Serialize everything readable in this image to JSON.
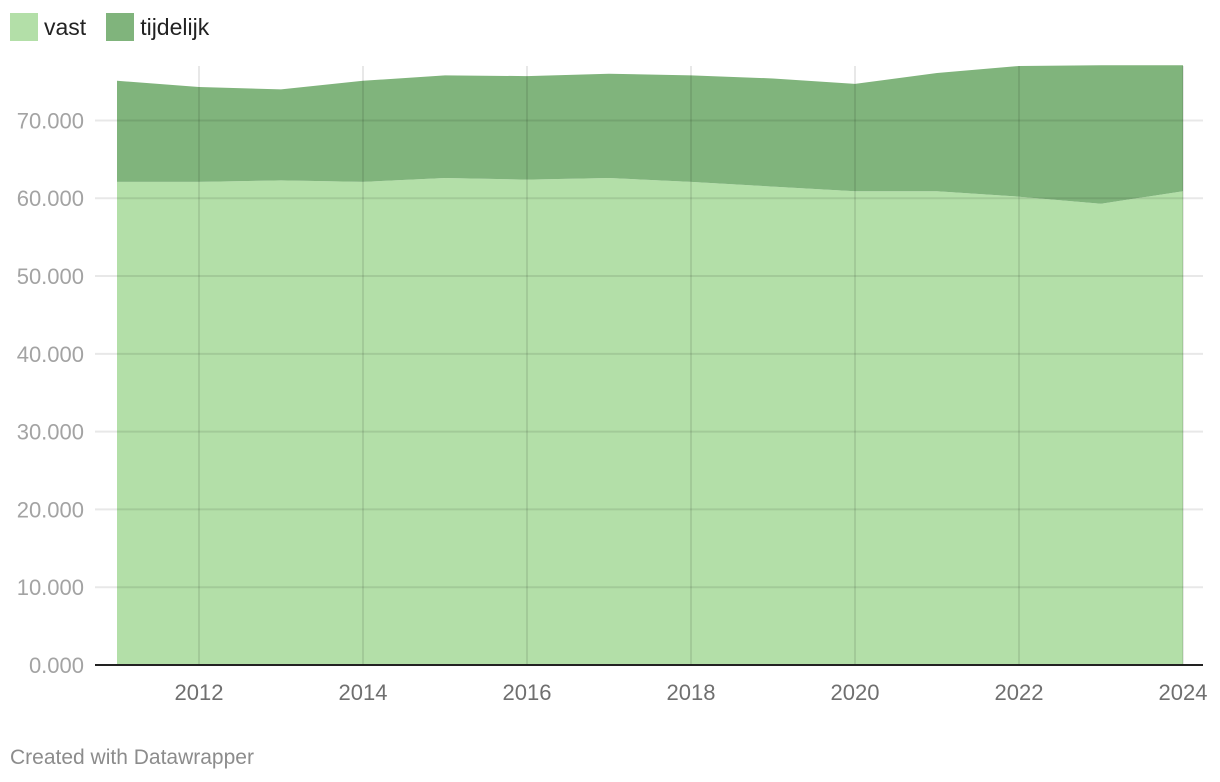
{
  "legend": {
    "items": [
      {
        "label": "vast",
        "color": "#b3dfa8"
      },
      {
        "label": "tijdelijk",
        "color": "#80b47c"
      }
    ]
  },
  "footer": {
    "credit": "Created with Datawrapper"
  },
  "chart_data": {
    "type": "area",
    "stacked": true,
    "x": [
      2011,
      2012,
      2013,
      2014,
      2015,
      2016,
      2017,
      2018,
      2019,
      2020,
      2021,
      2022,
      2023,
      2024
    ],
    "series": [
      {
        "name": "vast",
        "color": "#b3dfa8",
        "values": [
          62100,
          62100,
          62300,
          62100,
          62600,
          62400,
          62600,
          62100,
          61500,
          60900,
          60900,
          60200,
          59300,
          60900
        ]
      },
      {
        "name": "tijdelijk",
        "color": "#80b47c",
        "values": [
          13000,
          12200,
          11700,
          13000,
          13200,
          13300,
          13400,
          13700,
          13900,
          13800,
          15200,
          16800,
          17800,
          16200
        ]
      }
    ],
    "xlim": [
      2011,
      2024
    ],
    "ylim": [
      0,
      77000
    ],
    "x_ticks": [
      "2012",
      "2014",
      "2016",
      "2018",
      "2020",
      "2022",
      "2024"
    ],
    "y_ticks": [
      "0.000",
      "10.000",
      "20.000",
      "30.000",
      "40.000",
      "50.000",
      "60.000",
      "70.000"
    ],
    "grid": true,
    "legend_position": "top-left",
    "title": "",
    "xlabel": "",
    "ylabel": ""
  }
}
